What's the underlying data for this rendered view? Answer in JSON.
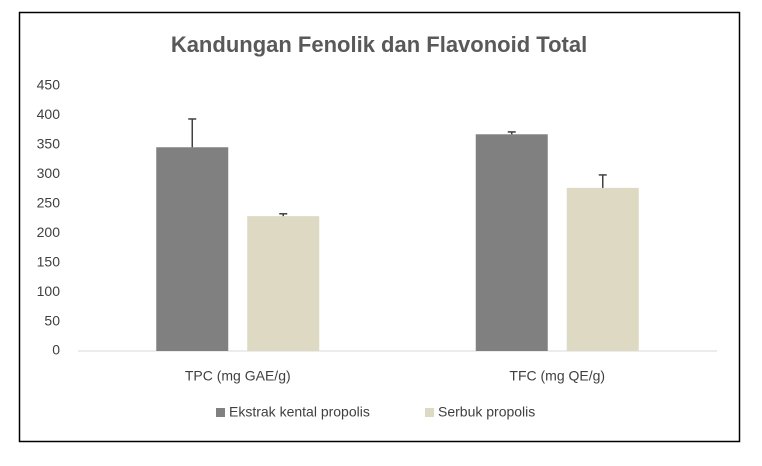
{
  "chart_data": {
    "type": "bar",
    "title": "Kandungan Fenolik dan Flavonoid Total",
    "categories": [
      "TPC (mg GAE/g)",
      "TFC (mg QE/g)"
    ],
    "series": [
      {
        "name": "Ekstrak kental propolis",
        "color": "#808080",
        "values": [
          346,
          368
        ],
        "errors": [
          48,
          4
        ]
      },
      {
        "name": "Serbuk propolis",
        "color": "#ddd9c3",
        "values": [
          229,
          277
        ],
        "errors": [
          4,
          22
        ]
      }
    ],
    "ylim": [
      0,
      450
    ],
    "yticks": [
      0,
      50,
      100,
      150,
      200,
      250,
      300,
      350,
      400,
      450
    ],
    "grid": false,
    "legend": "bottom"
  }
}
